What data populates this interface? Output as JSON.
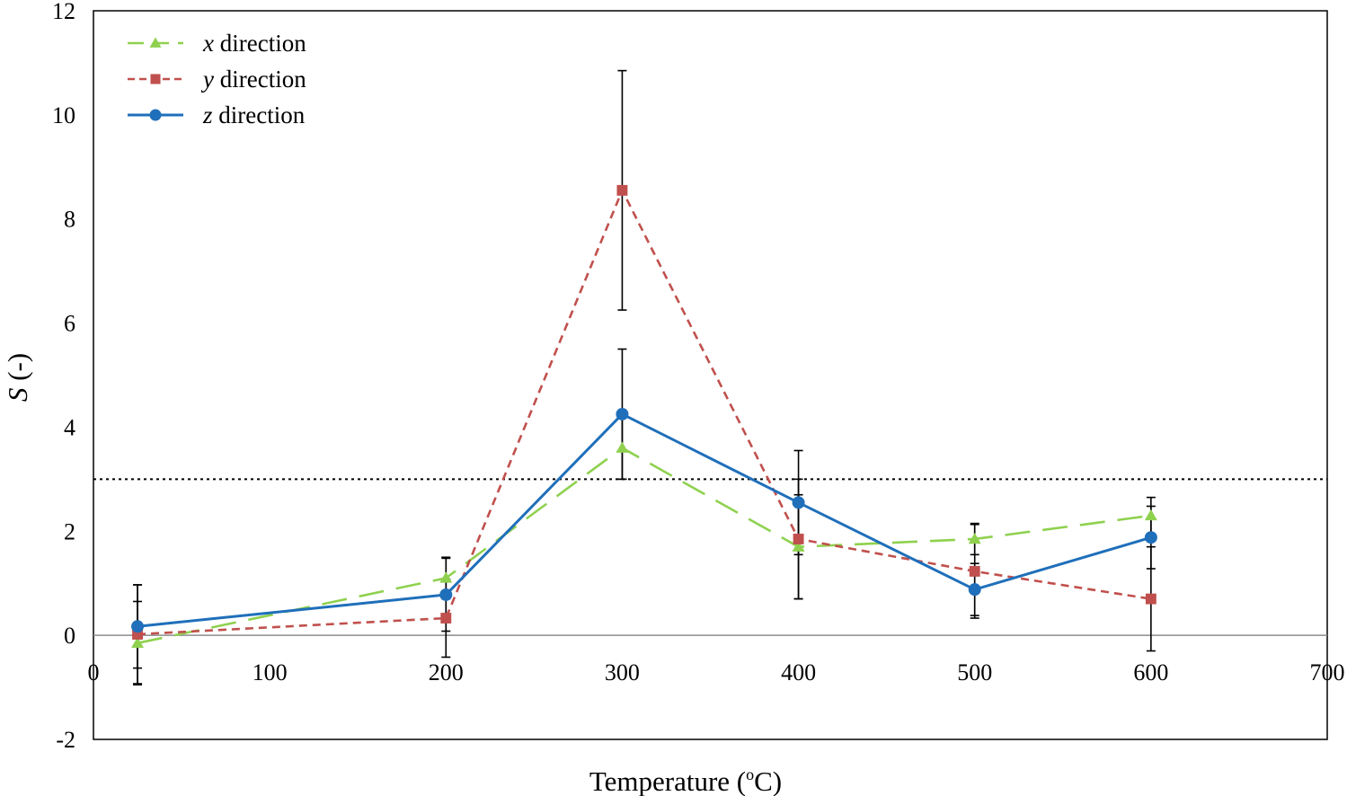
{
  "chart_data": {
    "type": "line",
    "xlabel_main": "Temperature (",
    "xlabel_sup": "o",
    "xlabel_unit": "C)",
    "ylabel_var": "S",
    "ylabel_rest": " (-)",
    "xlim": [
      0,
      700
    ],
    "ylim": [
      -2,
      12
    ],
    "xticks": [
      0,
      100,
      200,
      300,
      400,
      500,
      600,
      700
    ],
    "yticks": [
      -2,
      0,
      2,
      4,
      6,
      8,
      10,
      12
    ],
    "xtick_labels": [
      "0",
      "100",
      "200",
      "300",
      "400",
      "500",
      "600",
      "700"
    ],
    "ytick_labels": [
      "-2",
      "0",
      "2",
      "4",
      "6",
      "8",
      "10",
      "12"
    ],
    "reference_line": {
      "y": 3,
      "style": "dotted",
      "color": "#000000"
    },
    "legend_placement": "top-left",
    "x": [
      25,
      200,
      300,
      400,
      500,
      600
    ],
    "series": [
      {
        "name_var": "x",
        "name_rest": " direction",
        "color": "#8fd14f",
        "marker": "triangle",
        "dash": "28,14",
        "values": [
          -0.15,
          1.1,
          3.6,
          1.7,
          1.85,
          2.3
        ],
        "errors": [
          0.8,
          0.4,
          0.6,
          1.0,
          0.3,
          0.35
        ]
      },
      {
        "name_var": "y",
        "name_rest": " direction",
        "color": "#c0504d",
        "marker": "square",
        "dash": "9,6",
        "values": [
          0.02,
          0.33,
          8.55,
          1.85,
          1.23,
          0.7
        ],
        "errors": [
          0.95,
          0.75,
          2.3,
          1.15,
          0.9,
          1.0
        ]
      },
      {
        "name_var": "z",
        "name_rest": " direction",
        "color": "#1f6fba",
        "marker": "circle",
        "dash": "",
        "values": [
          0.17,
          0.78,
          4.25,
          2.55,
          0.88,
          1.88
        ],
        "errors": [
          0.8,
          0.7,
          1.25,
          1.0,
          0.5,
          0.6
        ]
      }
    ]
  }
}
